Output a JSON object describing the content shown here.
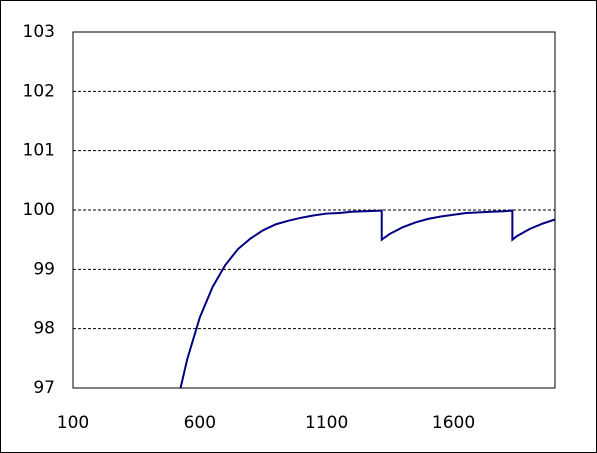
{
  "chart_data": {
    "type": "line",
    "color": "#000080",
    "grid": true,
    "x": [
      524,
      550,
      600,
      650,
      700,
      750,
      800,
      850,
      900,
      950,
      1000,
      1050,
      1100,
      1150,
      1200,
      1250,
      1317,
      1317,
      1350,
      1400,
      1450,
      1500,
      1550,
      1600,
      1650,
      1700,
      1750,
      1800,
      1832,
      1832,
      1850,
      1900,
      1950,
      2000
    ],
    "values": [
      97.0,
      97.48,
      98.19,
      98.7,
      99.07,
      99.34,
      99.52,
      99.66,
      99.76,
      99.82,
      99.87,
      99.91,
      99.94,
      99.95,
      99.97,
      99.98,
      99.99,
      99.5,
      99.6,
      99.71,
      99.79,
      99.85,
      99.89,
      99.92,
      99.95,
      99.96,
      99.97,
      99.98,
      99.99,
      99.5,
      99.56,
      99.68,
      99.77,
      99.84
    ],
    "xlim": [
      100,
      2000
    ],
    "xticks": [
      100,
      600,
      1100,
      1600
    ],
    "ylim": [
      97,
      103
    ],
    "yticks": [
      97,
      98,
      99,
      100,
      101,
      102,
      103
    ]
  }
}
